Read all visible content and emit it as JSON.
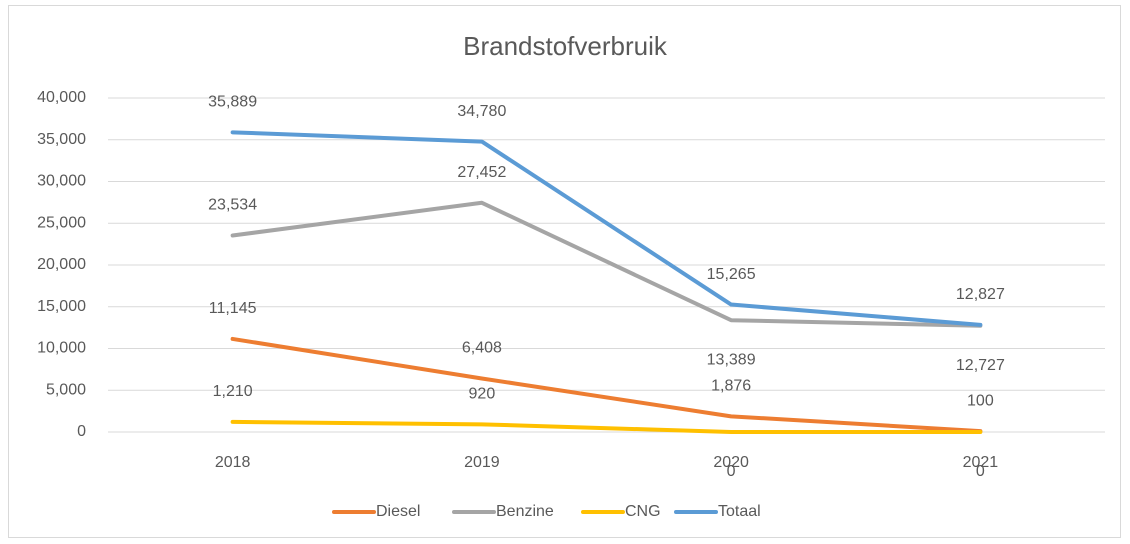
{
  "chart_data": {
    "type": "line",
    "title": "Brandstofverbruik",
    "categories": [
      "2018",
      "2019",
      "2020",
      "2021"
    ],
    "series": [
      {
        "name": "Diesel",
        "color": "#ed7d31",
        "values": [
          11145,
          6408,
          1876,
          100
        ],
        "value_labels": [
          "11,145",
          "6,408",
          "1,876",
          "100"
        ]
      },
      {
        "name": "Benzine",
        "color": "#a5a5a5",
        "values": [
          23534,
          27452,
          13389,
          12727
        ],
        "value_labels": [
          "23,534",
          "27,452",
          "13,389",
          "12,727"
        ]
      },
      {
        "name": "CNG",
        "color": "#ffc000",
        "values": [
          1210,
          920,
          0,
          0
        ],
        "value_labels": [
          "1,210",
          "920",
          "0",
          "0"
        ]
      },
      {
        "name": "Totaal",
        "color": "#5b9bd5",
        "values": [
          35889,
          34780,
          15265,
          12827
        ],
        "value_labels": [
          "35,889",
          "34,780",
          "15,265",
          "12,827"
        ]
      }
    ],
    "ylim": [
      0,
      40000
    ],
    "yticks": [
      0,
      {
        "value": 5000,
        "label": "5,000"
      },
      {
        "value": 10000,
        "label": "10,000"
      },
      {
        "value": 15000,
        "label": "15,000"
      },
      {
        "value": 20000,
        "label": "20,000"
      },
      {
        "value": 25000,
        "label": "25,000"
      },
      {
        "value": 30000,
        "label": "30,000"
      },
      {
        "value": 35000,
        "label": "35,000"
      },
      {
        "value": 40000,
        "label": "40,000"
      }
    ],
    "grid": true,
    "legend": "bottom"
  }
}
